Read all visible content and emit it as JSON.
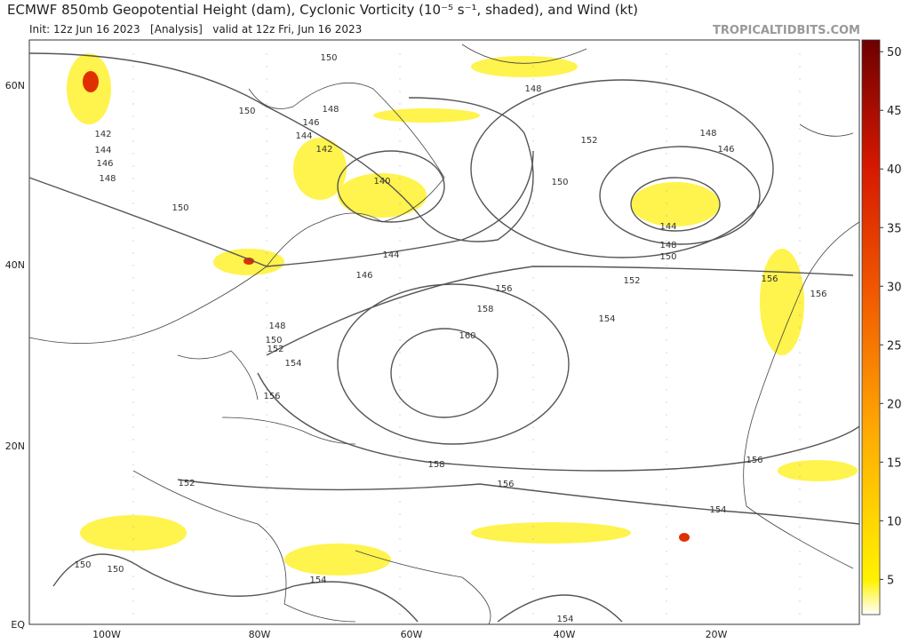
{
  "header": {
    "title": "ECMWF 850mb Geopotential Height (dam), Cyclonic Vorticity (10⁻⁵ s⁻¹, shaded), and Wind (kt)",
    "subtitle": "Init: 12z Jun 16 2023   [Analysis]   valid at 12z Fri, Jun 16 2023",
    "credit": "TROPICALTIDBITS.COM"
  },
  "map": {
    "longitude_labels": [
      "100W",
      "80W",
      "60W",
      "40W",
      "20W"
    ],
    "latitude_labels": [
      "60N",
      "40N",
      "20N",
      "EQ"
    ],
    "contour_labels": [
      150,
      150,
      148,
      146,
      144,
      142,
      140,
      142,
      144,
      146,
      148,
      150,
      148,
      152,
      150,
      148,
      146,
      144,
      148,
      150,
      144,
      146,
      156,
      158,
      160,
      152,
      154,
      156,
      156,
      148,
      150,
      152,
      154,
      156,
      158,
      156,
      156,
      154,
      152,
      150,
      150,
      154,
      154
    ]
  },
  "colorbar": {
    "lim": [
      2,
      51
    ],
    "ticks": [
      5,
      10,
      15,
      20,
      25,
      30,
      35,
      40,
      45,
      50
    ]
  }
}
